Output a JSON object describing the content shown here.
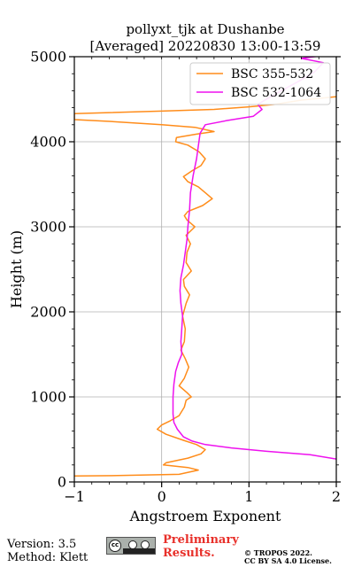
{
  "chart_data": {
    "type": "line",
    "title_line1": "pollyxt_tjk at Dushanbe",
    "title_line2": "[Averaged] 20220830 13:00-13:59",
    "xlabel": "Angstroem Exponent",
    "ylabel": "Height (m)",
    "xlim": [
      -1,
      2
    ],
    "ylim": [
      0,
      5000
    ],
    "xticks": [
      "−1",
      "0",
      "1",
      "2"
    ],
    "yticks": [
      "0",
      "1000",
      "2000",
      "3000",
      "4000",
      "5000"
    ],
    "grid": true,
    "legend_position": "top-right",
    "series": [
      {
        "name": "BSC 355-532",
        "color": "#ff8c1a",
        "points": [
          [
            -1.0,
            70
          ],
          [
            -0.5,
            75
          ],
          [
            0.2,
            90
          ],
          [
            0.42,
            140
          ],
          [
            0.3,
            170
          ],
          [
            0.02,
            200
          ],
          [
            0.05,
            225
          ],
          [
            0.3,
            280
          ],
          [
            0.45,
            330
          ],
          [
            0.5,
            380
          ],
          [
            0.4,
            440
          ],
          [
            0.25,
            490
          ],
          [
            0.05,
            560
          ],
          [
            -0.05,
            620
          ],
          [
            0.0,
            670
          ],
          [
            0.1,
            720
          ],
          [
            0.2,
            780
          ],
          [
            0.26,
            880
          ],
          [
            0.28,
            960
          ],
          [
            0.34,
            1000
          ],
          [
            0.29,
            1050
          ],
          [
            0.2,
            1130
          ],
          [
            0.26,
            1220
          ],
          [
            0.31,
            1350
          ],
          [
            0.27,
            1450
          ],
          [
            0.22,
            1550
          ],
          [
            0.26,
            1650
          ],
          [
            0.27,
            1800
          ],
          [
            0.24,
            1950
          ],
          [
            0.28,
            2100
          ],
          [
            0.32,
            2200
          ],
          [
            0.26,
            2300
          ],
          [
            0.25,
            2380
          ],
          [
            0.34,
            2480
          ],
          [
            0.28,
            2580
          ],
          [
            0.29,
            2700
          ],
          [
            0.33,
            2800
          ],
          [
            0.28,
            2900
          ],
          [
            0.38,
            3000
          ],
          [
            0.29,
            3080
          ],
          [
            0.26,
            3130
          ],
          [
            0.3,
            3180
          ],
          [
            0.47,
            3250
          ],
          [
            0.58,
            3330
          ],
          [
            0.5,
            3400
          ],
          [
            0.42,
            3470
          ],
          [
            0.3,
            3530
          ],
          [
            0.25,
            3590
          ],
          [
            0.35,
            3660
          ],
          [
            0.45,
            3720
          ],
          [
            0.5,
            3800
          ],
          [
            0.43,
            3880
          ],
          [
            0.3,
            3960
          ],
          [
            0.16,
            4000
          ],
          [
            0.17,
            4050
          ],
          [
            0.4,
            4090
          ],
          [
            0.6,
            4120
          ],
          [
            0.38,
            4170
          ],
          [
            0.0,
            4200
          ],
          [
            -0.6,
            4240
          ],
          [
            -1.0,
            4260
          ],
          [
            -1.0,
            4330
          ],
          [
            0.0,
            4360
          ],
          [
            0.6,
            4380
          ],
          [
            1.0,
            4410
          ],
          [
            1.3,
            4440
          ],
          [
            1.6,
            4490
          ],
          [
            2.0,
            4530
          ]
        ]
      },
      {
        "name": "BSC 532-1064",
        "color": "#ee11ee",
        "points": [
          [
            2.0,
            270
          ],
          [
            1.7,
            320
          ],
          [
            1.2,
            360
          ],
          [
            0.8,
            400
          ],
          [
            0.5,
            440
          ],
          [
            0.35,
            480
          ],
          [
            0.25,
            530
          ],
          [
            0.18,
            620
          ],
          [
            0.14,
            700
          ],
          [
            0.13,
            800
          ],
          [
            0.13,
            1000
          ],
          [
            0.14,
            1150
          ],
          [
            0.16,
            1300
          ],
          [
            0.19,
            1400
          ],
          [
            0.23,
            1500
          ],
          [
            0.22,
            1650
          ],
          [
            0.23,
            1800
          ],
          [
            0.24,
            1950
          ],
          [
            0.22,
            2100
          ],
          [
            0.21,
            2250
          ],
          [
            0.22,
            2400
          ],
          [
            0.25,
            2550
          ],
          [
            0.27,
            2700
          ],
          [
            0.29,
            2850
          ],
          [
            0.3,
            3000
          ],
          [
            0.32,
            3200
          ],
          [
            0.33,
            3400
          ],
          [
            0.36,
            3600
          ],
          [
            0.4,
            3800
          ],
          [
            0.42,
            3950
          ],
          [
            0.44,
            4100
          ],
          [
            0.5,
            4200
          ],
          [
            0.75,
            4250
          ],
          [
            1.05,
            4300
          ],
          [
            1.15,
            4380
          ],
          [
            1.1,
            4440
          ],
          [
            1.3,
            4560
          ],
          [
            1.55,
            4700
          ],
          [
            1.75,
            4820
          ],
          [
            1.85,
            4930
          ],
          [
            1.6,
            4980
          ],
          [
            1.9,
            5020
          ]
        ]
      }
    ]
  },
  "footer": {
    "version": "Version: 3.5",
    "method": "Method: Klett",
    "preliminary_line1": "Preliminary",
    "preliminary_line2": "Results.",
    "copyright_line1": "© TROPOS 2022.",
    "copyright_line2": "CC BY SA 4.0 License."
  }
}
